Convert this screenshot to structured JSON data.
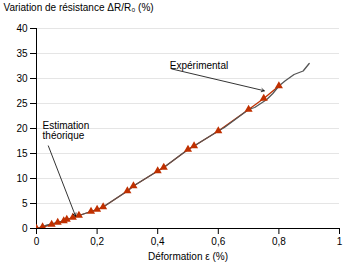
{
  "chart_data": {
    "type": "line",
    "xlabel": "Déformation ε (%)",
    "ylabel": "Variation de résistance ΔR/R₀ (%)",
    "xlim": [
      0,
      1.0
    ],
    "ylim": [
      0,
      40
    ],
    "xticks": [
      0,
      {
        "value": 0.2,
        "label": "0,2"
      },
      {
        "value": 0.4,
        "label": "0,4"
      },
      {
        "value": 0.6,
        "label": "0,6"
      },
      {
        "value": 0.8,
        "label": "0,8"
      },
      1
    ],
    "yticks": [
      0,
      5,
      10,
      15,
      20,
      25,
      30,
      35,
      40
    ],
    "grid": "y",
    "series": [
      {
        "color": "#c03000",
        "marker": "triangle",
        "line_style": "solid",
        "x": [
          0.0,
          0.02,
          0.05,
          0.07,
          0.09,
          0.1,
          0.12,
          0.14,
          0.18,
          0.2,
          0.22,
          0.3,
          0.32,
          0.4,
          0.42,
          0.5,
          0.52,
          0.6,
          0.7,
          0.75,
          0.8
        ],
        "values": [
          0.0,
          0.3,
          0.8,
          1.2,
          1.5,
          1.8,
          2.2,
          2.6,
          3.4,
          3.8,
          4.3,
          7.5,
          8.5,
          11.5,
          12.2,
          15.8,
          16.5,
          19.5,
          23.8,
          26.0,
          28.5
        ]
      },
      {
        "color": "#555555",
        "line_style": "solid",
        "x": [
          0.0,
          0.01,
          0.02,
          0.03,
          0.05,
          0.07,
          0.09,
          0.1,
          0.12,
          0.14,
          0.16,
          0.18,
          0.2,
          0.22,
          0.3,
          0.32,
          0.4,
          0.42,
          0.5,
          0.52,
          0.6,
          0.62,
          0.7,
          0.72,
          0.74,
          0.76,
          0.78,
          0.8,
          0.82,
          0.85,
          0.88,
          0.9
        ],
        "values": [
          0.0,
          0.2,
          0.4,
          0.6,
          0.9,
          1.2,
          1.5,
          1.8,
          2.2,
          2.6,
          3.0,
          3.4,
          3.8,
          4.3,
          7.5,
          8.5,
          11.5,
          12.2,
          15.8,
          16.5,
          19.5,
          20.2,
          23.8,
          24.2,
          25.0,
          25.8,
          27.0,
          28.5,
          29.5,
          30.8,
          31.5,
          33.0
        ]
      }
    ],
    "annotations": [
      {
        "text": "Expérimental",
        "x": 0.755,
        "y": 27.5,
        "text_x": 0.44,
        "text_y": 32.0
      },
      {
        "text": "Estimation\nthéorique",
        "x": 0.13,
        "y": 2.3,
        "text_x": 0.02,
        "text_y": 19.5
      }
    ]
  }
}
